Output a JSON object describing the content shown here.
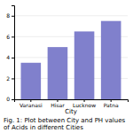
{
  "chart_data": {
    "type": "bar",
    "title": "Fig. 1: Plot between City and PH values of Acids in different Cities",
    "xlabel": "City",
    "categories": [
      "Varanasi",
      "Hisar",
      "Lucknow",
      "Patna"
    ],
    "values": [
      3.5,
      5.0,
      6.5,
      7.5
    ],
    "color": "#8080cc",
    "ylim": [
      0,
      9
    ],
    "yticks": [
      0,
      2,
      4,
      6,
      8
    ],
    "grid": true
  }
}
